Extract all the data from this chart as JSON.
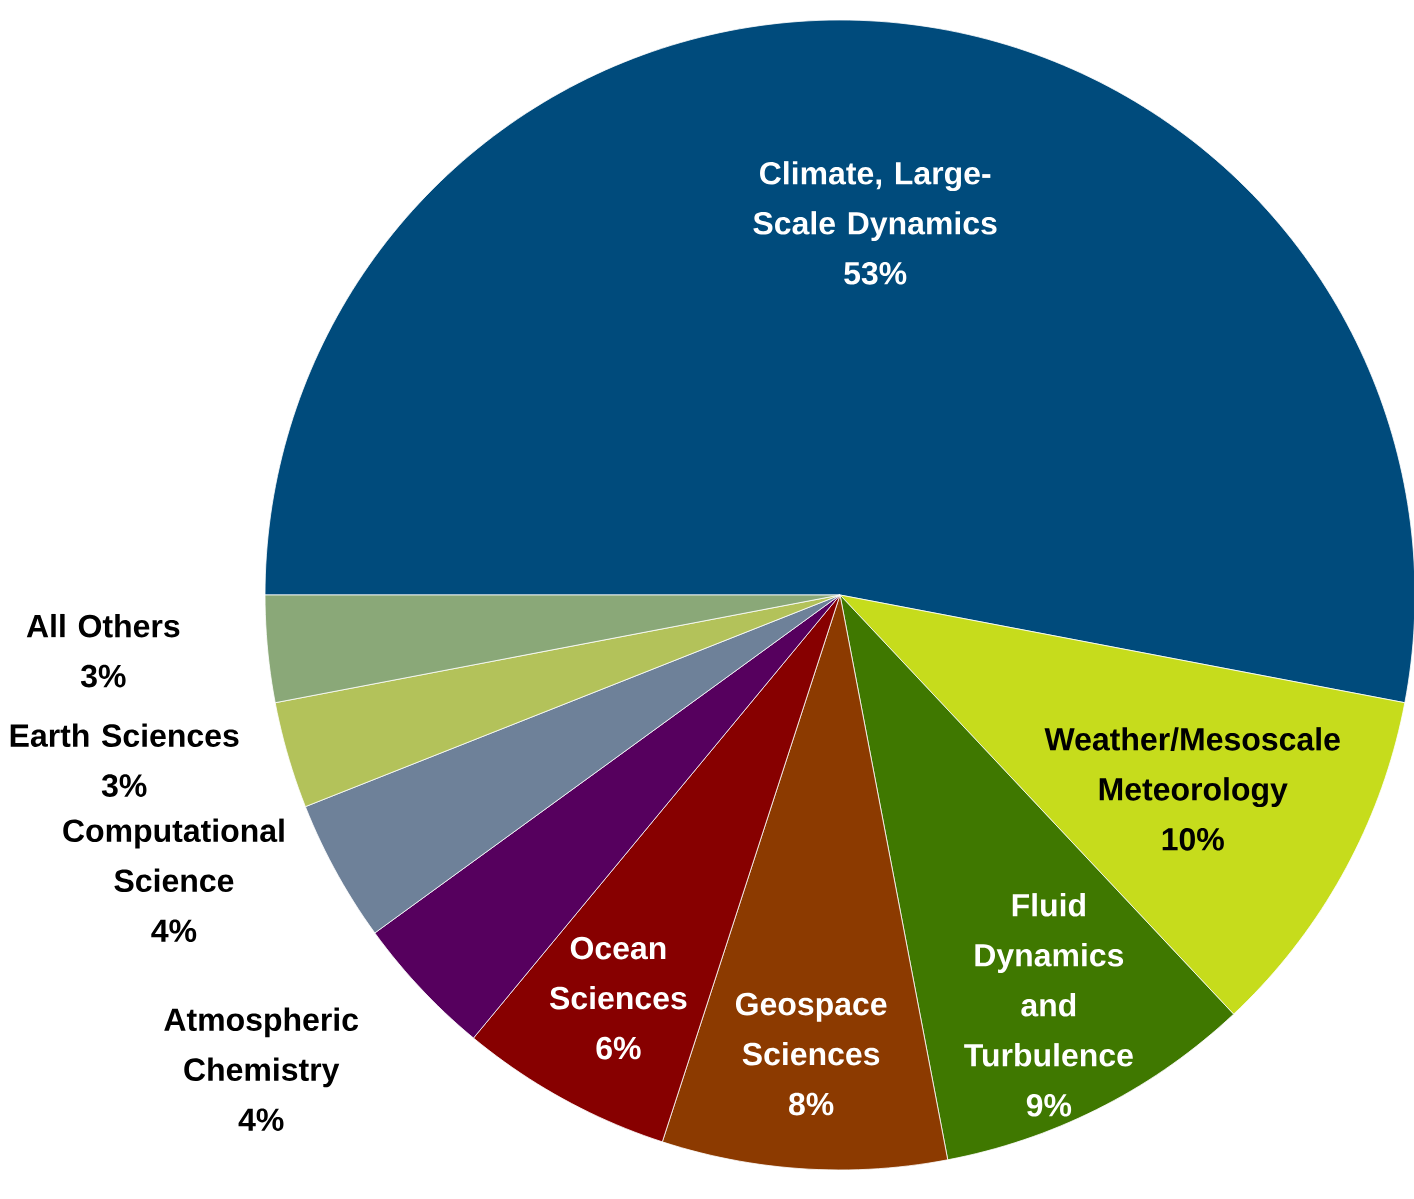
{
  "chart_data": {
    "type": "pie",
    "categories": [
      "Climate, Large-Scale Dynamics",
      "Weather/Mesoscale Meteorology",
      "Fluid Dynamics and Turbulence",
      "Geospace Sciences",
      "Ocean Sciences",
      "Atmospheric Chemistry",
      "Computational Science",
      "Earth Sciences",
      "All Others"
    ],
    "values": [
      53,
      10,
      9,
      8,
      6,
      4,
      4,
      3,
      3
    ],
    "value_labels": [
      "53%",
      "10%",
      "9%",
      "8%",
      "6%",
      "4%",
      "4%",
      "3%",
      "3%"
    ],
    "colors": [
      "#004b7c",
      "#c6dc1c",
      "#3f7800",
      "#8c3a00",
      "#870000",
      "#56005e",
      "#6e8199",
      "#b3c25a",
      "#8aa878"
    ]
  }
}
